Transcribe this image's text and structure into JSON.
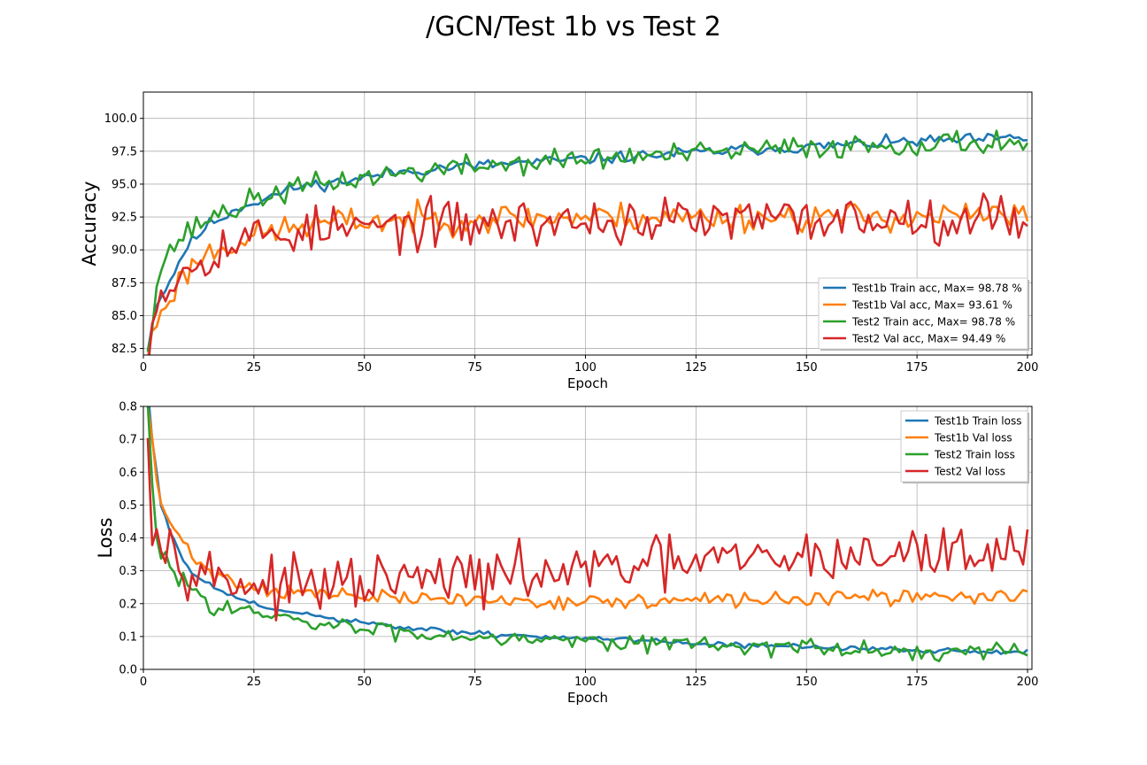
{
  "figure": {
    "title": "/GCN/Test 1b vs Test 2"
  },
  "chart_data": [
    {
      "type": "line",
      "xlabel": "Epoch",
      "ylabel": "Accuracy",
      "xlim": [
        0,
        201
      ],
      "ylim": [
        82,
        102
      ],
      "xticks": [
        0,
        25,
        50,
        75,
        100,
        125,
        150,
        175,
        200
      ],
      "yticks": [
        82.5,
        85.0,
        87.5,
        90.0,
        92.5,
        95.0,
        97.5,
        100.0
      ],
      "grid": true,
      "legend_position": "lower-right",
      "series": [
        {
          "name": "Test1b Train acc, Max= 98.78 %",
          "color": "#1f77b4",
          "seed": 11,
          "points": [
            [
              1,
              82.5
            ],
            [
              3,
              86
            ],
            [
              5,
              87
            ],
            [
              7,
              88.3
            ],
            [
              9,
              89.8
            ],
            [
              12,
              91
            ],
            [
              15,
              92
            ],
            [
              18,
              92.5
            ],
            [
              22,
              93.3
            ],
            [
              25,
              93.6
            ],
            [
              30,
              94.2
            ],
            [
              35,
              94.8
            ],
            [
              40,
              95
            ],
            [
              45,
              95.2
            ],
            [
              50,
              95.5
            ],
            [
              55,
              95.8
            ],
            [
              60,
              96
            ],
            [
              70,
              96.3
            ],
            [
              80,
              96.5
            ],
            [
              90,
              96.7
            ],
            [
              100,
              96.9
            ],
            [
              110,
              97.1
            ],
            [
              120,
              97.3
            ],
            [
              130,
              97.5
            ],
            [
              140,
              97.7
            ],
            [
              150,
              97.8
            ],
            [
              160,
              98
            ],
            [
              170,
              98.2
            ],
            [
              180,
              98.3
            ],
            [
              190,
              98.4
            ],
            [
              200,
              98.5
            ]
          ],
          "noise": 0.22
        },
        {
          "name": "Test1b Val acc, Max= 93.61 %",
          "color": "#ff7f0e",
          "seed": 23,
          "points": [
            [
              1,
              82
            ],
            [
              3,
              84.5
            ],
            [
              5,
              86
            ],
            [
              8,
              87.5
            ],
            [
              12,
              89.2
            ],
            [
              16,
              90
            ],
            [
              20,
              90.5
            ],
            [
              25,
              91
            ],
            [
              30,
              91.5
            ],
            [
              40,
              92
            ],
            [
              50,
              92.2
            ],
            [
              75,
              92.4
            ],
            [
              100,
              92.5
            ],
            [
              150,
              92.5
            ],
            [
              200,
              92.6
            ]
          ],
          "noise": 0.55
        },
        {
          "name": "Test2 Train acc, Max= 98.78 %",
          "color": "#2ca02c",
          "seed": 37,
          "points": [
            [
              1,
              82.5
            ],
            [
              3,
              87.5
            ],
            [
              5,
              89.5
            ],
            [
              8,
              90.8
            ],
            [
              12,
              91.8
            ],
            [
              16,
              92.7
            ],
            [
              20,
              93
            ],
            [
              25,
              93.8
            ],
            [
              30,
              94.3
            ],
            [
              35,
              94.7
            ],
            [
              40,
              95
            ],
            [
              50,
              95.5
            ],
            [
              60,
              95.9
            ],
            [
              70,
              96.2
            ],
            [
              80,
              96.5
            ],
            [
              90,
              96.7
            ],
            [
              100,
              96.9
            ],
            [
              110,
              97.1
            ],
            [
              120,
              97.2
            ],
            [
              130,
              97.4
            ],
            [
              140,
              97.6
            ],
            [
              150,
              97.8
            ],
            [
              160,
              97.9
            ],
            [
              170,
              98
            ],
            [
              180,
              98.1
            ],
            [
              190,
              98.2
            ],
            [
              200,
              98.2
            ]
          ],
          "noise": 0.45
        },
        {
          "name": "Test2 Val acc, Max= 94.49 %",
          "color": "#d62728",
          "seed": 53,
          "points": [
            [
              1,
              82
            ],
            [
              3,
              86.5
            ],
            [
              5,
              87.3
            ],
            [
              8,
              88
            ],
            [
              12,
              89.3
            ],
            [
              16,
              90
            ],
            [
              20,
              90.5
            ],
            [
              25,
              91
            ],
            [
              30,
              91.3
            ],
            [
              40,
              91.5
            ],
            [
              60,
              91.8
            ],
            [
              80,
              92
            ],
            [
              100,
              92.1
            ],
            [
              150,
              92.3
            ],
            [
              200,
              92.6
            ]
          ],
          "noise": 0.9
        }
      ]
    },
    {
      "type": "line",
      "xlabel": "Epoch",
      "ylabel": "Loss",
      "xlim": [
        0,
        201
      ],
      "ylim": [
        0.0,
        0.8
      ],
      "xticks": [
        0,
        25,
        50,
        75,
        100,
        125,
        150,
        175,
        200
      ],
      "yticks": [
        0.0,
        0.1,
        0.2,
        0.3,
        0.4,
        0.5,
        0.6,
        0.7,
        0.8
      ],
      "grid": true,
      "legend_position": "upper-right",
      "series": [
        {
          "name": "Test1b Train loss",
          "color": "#1f77b4",
          "seed": 61,
          "points": [
            [
              1,
              0.85
            ],
            [
              2,
              0.7
            ],
            [
              4,
              0.5
            ],
            [
              6,
              0.42
            ],
            [
              8,
              0.36
            ],
            [
              10,
              0.31
            ],
            [
              13,
              0.27
            ],
            [
              16,
              0.25
            ],
            [
              20,
              0.22
            ],
            [
              25,
              0.2
            ],
            [
              30,
              0.18
            ],
            [
              40,
              0.16
            ],
            [
              50,
              0.14
            ],
            [
              60,
              0.125
            ],
            [
              70,
              0.115
            ],
            [
              80,
              0.105
            ],
            [
              90,
              0.1
            ],
            [
              100,
              0.095
            ],
            [
              110,
              0.088
            ],
            [
              120,
              0.082
            ],
            [
              130,
              0.078
            ],
            [
              140,
              0.072
            ],
            [
              150,
              0.068
            ],
            [
              160,
              0.064
            ],
            [
              170,
              0.06
            ],
            [
              180,
              0.057
            ],
            [
              190,
              0.055
            ],
            [
              200,
              0.053
            ]
          ],
          "noise": 0.004
        },
        {
          "name": "Test1b Val loss",
          "color": "#ff7f0e",
          "seed": 71,
          "points": [
            [
              1,
              0.8
            ],
            [
              2,
              0.7
            ],
            [
              3,
              0.56
            ],
            [
              5,
              0.47
            ],
            [
              7,
              0.42
            ],
            [
              10,
              0.37
            ],
            [
              13,
              0.32
            ],
            [
              16,
              0.29
            ],
            [
              20,
              0.27
            ],
            [
              25,
              0.25
            ],
            [
              30,
              0.24
            ],
            [
              40,
              0.23
            ],
            [
              50,
              0.22
            ],
            [
              60,
              0.215
            ],
            [
              80,
              0.21
            ],
            [
              100,
              0.205
            ],
            [
              120,
              0.208
            ],
            [
              150,
              0.215
            ],
            [
              175,
              0.22
            ],
            [
              200,
              0.225
            ]
          ],
          "noise": 0.011
        },
        {
          "name": "Test2 Train loss",
          "color": "#2ca02c",
          "seed": 83,
          "points": [
            [
              1,
              0.8
            ],
            [
              2,
              0.55
            ],
            [
              3,
              0.4
            ],
            [
              4,
              0.34
            ],
            [
              6,
              0.32
            ],
            [
              8,
              0.28
            ],
            [
              10,
              0.26
            ],
            [
              13,
              0.22
            ],
            [
              16,
              0.2
            ],
            [
              20,
              0.19
            ],
            [
              25,
              0.17
            ],
            [
              30,
              0.155
            ],
            [
              40,
              0.135
            ],
            [
              50,
              0.125
            ],
            [
              60,
              0.11
            ],
            [
              70,
              0.105
            ],
            [
              80,
              0.1
            ],
            [
              90,
              0.095
            ],
            [
              100,
              0.09
            ],
            [
              110,
              0.085
            ],
            [
              120,
              0.08
            ],
            [
              130,
              0.075
            ],
            [
              140,
              0.07
            ],
            [
              150,
              0.065
            ],
            [
              160,
              0.06
            ],
            [
              170,
              0.055
            ],
            [
              180,
              0.05
            ],
            [
              190,
              0.05
            ],
            [
              200,
              0.055
            ]
          ],
          "noise": 0.013
        },
        {
          "name": "Test2 Val loss",
          "color": "#d62728",
          "seed": 97,
          "points": [
            [
              1,
              0.75
            ],
            [
              2,
              0.46
            ],
            [
              4,
              0.39
            ],
            [
              6,
              0.38
            ],
            [
              8,
              0.36
            ],
            [
              11,
              0.31
            ],
            [
              15,
              0.29
            ],
            [
              20,
              0.27
            ],
            [
              25,
              0.26
            ],
            [
              30,
              0.25
            ],
            [
              40,
              0.25
            ],
            [
              50,
              0.26
            ],
            [
              60,
              0.27
            ],
            [
              70,
              0.28
            ],
            [
              80,
              0.28
            ],
            [
              90,
              0.29
            ],
            [
              100,
              0.3
            ],
            [
              110,
              0.31
            ],
            [
              120,
              0.32
            ],
            [
              130,
              0.33
            ],
            [
              140,
              0.33
            ],
            [
              150,
              0.34
            ],
            [
              160,
              0.345
            ],
            [
              170,
              0.35
            ],
            [
              180,
              0.355
            ],
            [
              190,
              0.36
            ],
            [
              200,
              0.36
            ]
          ],
          "noise": 0.04
        }
      ]
    }
  ]
}
